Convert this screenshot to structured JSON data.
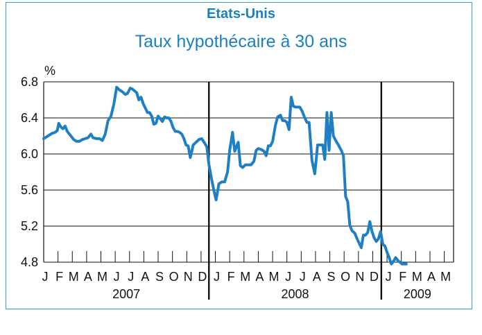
{
  "chart_data": {
    "type": "line",
    "title": "Etats-Unis",
    "subtitle": "Taux hypothécaire à 30 ans",
    "ylabel": "%",
    "ylim": [
      4.8,
      6.8
    ],
    "yticks": [
      "6.8",
      "6.4",
      "6.0",
      "5.6",
      "5.2",
      "4.8"
    ],
    "grid": true,
    "months": [
      "J",
      "F",
      "M",
      "A",
      "M",
      "J",
      "J",
      "A",
      "S",
      "O",
      "N",
      "D",
      "J",
      "F",
      "M",
      "A",
      "M",
      "J",
      "J",
      "A",
      "S",
      "O",
      "N",
      "D",
      "J",
      "F",
      "M",
      "A",
      "M"
    ],
    "years": [
      "2007",
      "2008",
      "2009"
    ],
    "line_color": "#1f7fc4",
    "series": [
      {
        "values": [
          [
            0.0,
            6.17
          ],
          [
            0.3,
            6.2
          ],
          [
            0.6,
            6.23
          ],
          [
            0.8,
            6.24
          ],
          [
            0.95,
            6.26
          ],
          [
            1.05,
            6.34
          ],
          [
            1.2,
            6.3
          ],
          [
            1.35,
            6.28
          ],
          [
            1.5,
            6.31
          ],
          [
            1.65,
            6.25
          ],
          [
            1.9,
            6.2
          ],
          [
            2.1,
            6.16
          ],
          [
            2.3,
            6.14
          ],
          [
            2.5,
            6.14
          ],
          [
            2.7,
            6.16
          ],
          [
            2.9,
            6.17
          ],
          [
            3.1,
            6.18
          ],
          [
            3.3,
            6.22
          ],
          [
            3.45,
            6.18
          ],
          [
            3.7,
            6.17
          ],
          [
            3.9,
            6.17
          ],
          [
            4.1,
            6.15
          ],
          [
            4.3,
            6.22
          ],
          [
            4.5,
            6.37
          ],
          [
            4.7,
            6.42
          ],
          [
            4.9,
            6.55
          ],
          [
            5.1,
            6.74
          ],
          [
            5.3,
            6.71
          ],
          [
            5.5,
            6.69
          ],
          [
            5.7,
            6.66
          ],
          [
            5.85,
            6.67
          ],
          [
            6.05,
            6.73
          ],
          [
            6.2,
            6.72
          ],
          [
            6.35,
            6.7
          ],
          [
            6.5,
            6.68
          ],
          [
            6.65,
            6.6
          ],
          [
            6.8,
            6.63
          ],
          [
            6.95,
            6.56
          ],
          [
            7.1,
            6.51
          ],
          [
            7.25,
            6.46
          ],
          [
            7.4,
            6.46
          ],
          [
            7.55,
            6.42
          ],
          [
            7.7,
            6.33
          ],
          [
            7.85,
            6.34
          ],
          [
            8.0,
            6.42
          ],
          [
            8.15,
            6.39
          ],
          [
            8.3,
            6.36
          ],
          [
            8.45,
            6.41
          ],
          [
            8.6,
            6.4
          ],
          [
            8.75,
            6.4
          ],
          [
            8.9,
            6.36
          ],
          [
            9.05,
            6.29
          ],
          [
            9.2,
            6.25
          ],
          [
            9.35,
            6.25
          ],
          [
            9.5,
            6.24
          ],
          [
            9.65,
            6.22
          ],
          [
            9.8,
            6.17
          ],
          [
            9.95,
            6.1
          ],
          [
            10.1,
            6.09
          ],
          [
            10.25,
            5.96
          ],
          [
            10.45,
            6.1
          ],
          [
            10.65,
            6.13
          ],
          [
            10.85,
            6.16
          ],
          [
            11.05,
            6.17
          ],
          [
            11.25,
            6.12
          ],
          [
            11.4,
            6.08
          ],
          [
            11.55,
            5.88
          ],
          [
            11.75,
            5.71
          ],
          [
            11.9,
            5.59
          ],
          [
            12.05,
            5.49
          ],
          [
            12.25,
            5.67
          ],
          [
            12.45,
            5.69
          ],
          [
            12.65,
            5.69
          ],
          [
            12.85,
            5.8
          ],
          [
            13.0,
            6.04
          ],
          [
            13.2,
            6.24
          ],
          [
            13.35,
            6.03
          ],
          [
            13.5,
            6.09
          ],
          [
            13.6,
            6.13
          ],
          [
            13.75,
            5.87
          ],
          [
            13.9,
            5.85
          ],
          [
            14.1,
            5.88
          ],
          [
            14.3,
            5.88
          ],
          [
            14.5,
            5.88
          ],
          [
            14.7,
            5.92
          ],
          [
            14.85,
            6.04
          ],
          [
            15.0,
            6.06
          ],
          [
            15.2,
            6.05
          ],
          [
            15.4,
            6.03
          ],
          [
            15.55,
            5.98
          ],
          [
            15.7,
            6.09
          ],
          [
            15.85,
            6.09
          ],
          [
            16.0,
            6.14
          ],
          [
            16.2,
            6.32
          ],
          [
            16.35,
            6.41
          ],
          [
            16.55,
            6.43
          ],
          [
            16.7,
            6.37
          ],
          [
            16.85,
            6.37
          ],
          [
            17.0,
            6.35
          ],
          [
            17.15,
            6.27
          ],
          [
            17.3,
            6.63
          ],
          [
            17.45,
            6.53
          ],
          [
            17.6,
            6.52
          ],
          [
            17.75,
            6.52
          ],
          [
            17.9,
            6.52
          ],
          [
            18.05,
            6.48
          ],
          [
            18.25,
            6.4
          ],
          [
            18.4,
            6.35
          ],
          [
            18.55,
            6.35
          ],
          [
            18.75,
            5.93
          ],
          [
            18.95,
            5.78
          ],
          [
            19.15,
            6.1
          ],
          [
            19.35,
            6.1
          ],
          [
            19.5,
            6.1
          ],
          [
            19.65,
            5.94
          ],
          [
            19.8,
            6.46
          ],
          [
            19.95,
            6.04
          ],
          [
            20.1,
            6.46
          ],
          [
            20.25,
            6.2
          ],
          [
            20.45,
            6.14
          ],
          [
            20.6,
            6.1
          ],
          [
            20.8,
            6.04
          ],
          [
            20.95,
            5.98
          ],
          [
            21.1,
            5.53
          ],
          [
            21.25,
            5.47
          ],
          [
            21.4,
            5.21
          ],
          [
            21.55,
            5.15
          ],
          [
            21.75,
            5.12
          ],
          [
            21.9,
            5.06
          ],
          [
            22.05,
            5.01
          ],
          [
            22.2,
            4.96
          ],
          [
            22.35,
            5.1
          ],
          [
            22.5,
            5.1
          ],
          [
            22.65,
            5.13
          ],
          [
            22.8,
            5.25
          ],
          [
            22.95,
            5.14
          ],
          [
            23.1,
            5.07
          ],
          [
            23.25,
            5.03
          ],
          [
            23.4,
            5.06
          ],
          [
            23.55,
            5.14
          ],
          [
            23.7,
            5.0
          ],
          [
            23.85,
            4.98
          ],
          [
            24.0,
            4.91
          ],
          [
            24.15,
            4.85
          ],
          [
            24.3,
            4.78
          ],
          [
            24.45,
            4.81
          ],
          [
            24.6,
            4.85
          ],
          [
            24.75,
            4.82
          ],
          [
            24.9,
            4.8
          ],
          [
            25.05,
            4.78
          ],
          [
            25.2,
            4.78
          ],
          [
            25.35,
            4.78
          ]
        ]
      }
    ]
  }
}
